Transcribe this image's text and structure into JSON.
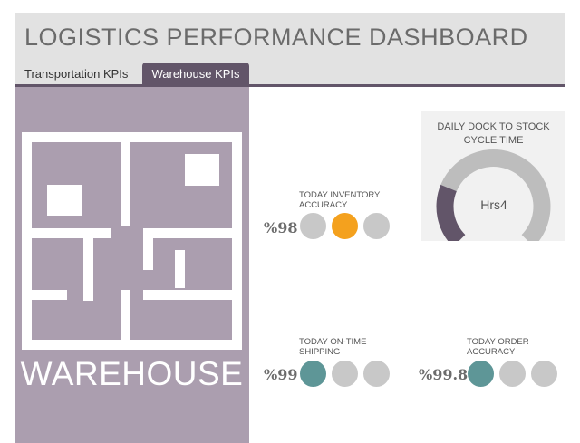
{
  "header": {
    "title": "LOGISTICS PERFORMANCE DASHBOARD",
    "tabs": [
      {
        "label": "Transportation KPIs",
        "active": false
      },
      {
        "label": "Warehouse KPIs",
        "active": true
      }
    ]
  },
  "warehouse_panel": {
    "label": "WAREHOUSE"
  },
  "kpis": {
    "inventory_accuracy": {
      "label": "TODAY INVENTORY ACCURACY",
      "value": "%98",
      "dots": [
        "#c8c8c8",
        "#f4a11e",
        "#c8c8c8"
      ]
    },
    "on_time_shipping": {
      "label": "TODAY ON-TIME SHIPPING",
      "value": "%99",
      "dots": [
        "#5e9697",
        "#c8c8c8",
        "#c8c8c8"
      ]
    },
    "order_accuracy": {
      "label": "TODAY ORDER ACCURACY",
      "value": "%99.8",
      "dots": [
        "#5e9697",
        "#c8c8c8",
        "#c8c8c8"
      ]
    }
  },
  "gauge": {
    "title": "DAILY DOCK TO STOCK CYCLE TIME",
    "value_text": "Hrs4",
    "fraction": 0.25,
    "fill_color": "#625569",
    "track_color": "#bdbdbd"
  },
  "colors": {
    "accent": "#625569",
    "panel": "#ab9eaf",
    "header_bg": "#e2e2e2"
  }
}
